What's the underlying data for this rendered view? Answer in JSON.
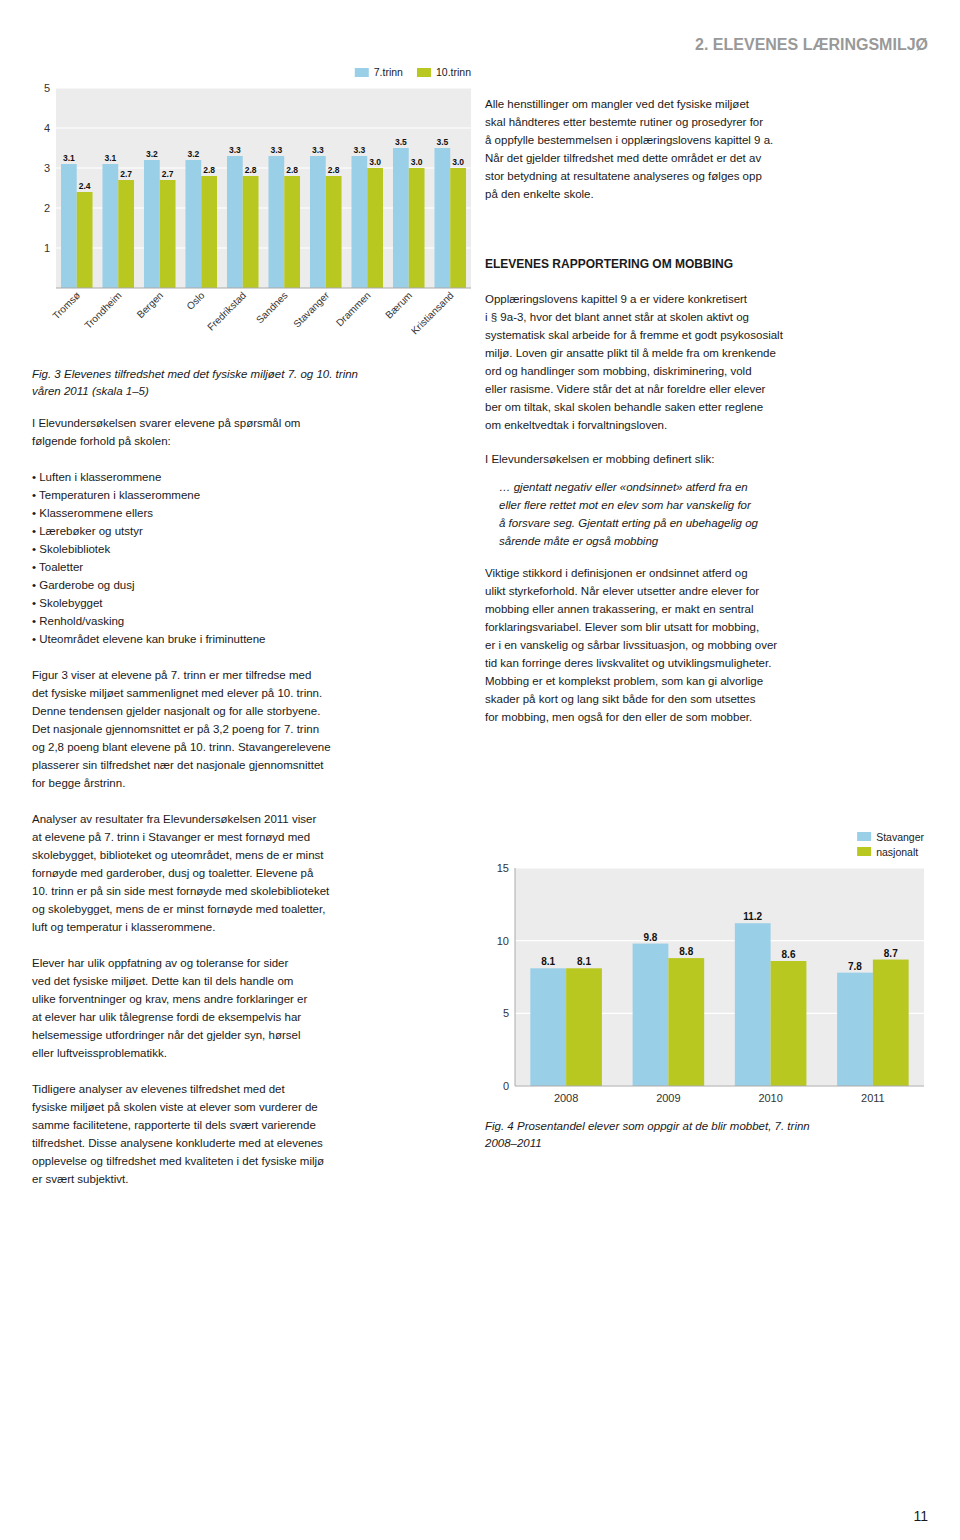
{
  "chart_data": [
    {
      "type": "bar",
      "title": "Fig. 3 Elevenes tilfredshet med det fysiske miljøet 7. og 10. trinn\nvåren 2011 (skala 1–5)",
      "categories": [
        "Tromsø",
        "Trondheim",
        "Bergen",
        "Oslo",
        "Fredrikstad",
        "Sandnes",
        "Stavanger",
        "Drammen",
        "Bærum",
        "Kristiansand"
      ],
      "series": [
        {
          "name": "7.trinn",
          "color": "#9acfe8",
          "values": [
            3.1,
            3.1,
            3.2,
            3.2,
            3.3,
            3.3,
            3.3,
            3.3,
            3.5,
            3.5
          ]
        },
        {
          "name": "10.trinn",
          "color": "#b8c820",
          "values": [
            2.4,
            2.7,
            2.7,
            2.8,
            2.8,
            2.8,
            2.8,
            3.0,
            3.0,
            3.0
          ],
          "value_labels": [
            "2.4",
            "2.7",
            "2.7",
            "2.8",
            "2.8",
            "2.8",
            "2.8",
            "3.0",
            "3.0",
            "3.0"
          ]
        }
      ],
      "ylim": [
        0,
        5
      ],
      "yticks": [
        1,
        2,
        3,
        4,
        5
      ],
      "grid": true,
      "legend": "upper right",
      "data_labels": true
    },
    {
      "type": "bar",
      "title": "Fig. 4 Prosentandel elever som oppgir at de blir mobbet, 7. trinn\n2008–2011",
      "categories": [
        "2008",
        "2009",
        "2010",
        "2011"
      ],
      "series": [
        {
          "name": "Stavanger",
          "color": "#9acfe8",
          "values": [
            8.1,
            9.8,
            11.2,
            7.8
          ]
        },
        {
          "name": "nasjonalt",
          "color": "#b8c820",
          "values": [
            8.1,
            8.8,
            8.6,
            8.7
          ]
        }
      ],
      "ylim": [
        0,
        15
      ],
      "yticks": [
        0,
        5,
        10,
        15
      ],
      "grid": true,
      "legend": "upper right",
      "data_labels": true
    }
  ],
  "page": {
    "title": "2. ELEVENES LÆRINGSMILJØ",
    "page_number": "11",
    "left_column": {
      "intro": "I Elevundersøkelsen svarer elevene på spørsmål om\nfølgende forhold på skolen:",
      "bullets": [
        "• Luften i klasserommene",
        "• Temperaturen i klasserommene",
        "• Klasserommene ellers",
        "• Lærebøker og utstyr",
        "• Skolebibliotek",
        "• Toaletter",
        "• Garderobe og dusj",
        "• Skolebygget",
        "• Renhold/vasking",
        "• Uteområdet elevene kan bruke i friminuttene"
      ],
      "paragraphs": [
        "Figur 3 viser at elevene på 7. trinn er mer tilfredse med\ndet fysiske miljøet sammenlignet med elever på 10. trinn.\nDenne tendensen gjelder nasjonalt og for alle storbyene.\nDet nasjonale gjennomsnittet er på 3,2 poeng for 7. trinn\nog 2,8 poeng blant elevene på 10. trinn. Stavangerelevene\nplasserer sin tilfredshet nær det nasjonale gjennomsnittet\nfor begge årstrinn.",
        "Analyser av resultater fra Elevundersøkelsen 2011 viser\nat elevene på 7. trinn i Stavanger er mest fornøyd med\nskolebygget, biblioteket og uteområdet, mens de er minst\nfornøyde med garderober, dusj og toaletter. Elevene på\n10. trinn er på sin side mest fornøyde med skolebiblioteket\nog skolebygget, mens de er minst fornøyde med toaletter,\nluft og temperatur i klasserommene.",
        "Elever har ulik oppfatning av og toleranse for sider\nved det fysiske miljøet. Dette kan til dels handle om\nulike forventninger og krav, mens andre forklaringer er\nat elever har ulik tålegrense fordi de eksempelvis har\nhelsemessige utfordringer når det gjelder syn, hørsel\neller luftveissproblematikk.",
        "Tidligere analyser av elevenes tilfredshet med det\nfysiske miljøet på skolen viste at elever som vurderer de\nsamme facilitetene, rapporterte til dels svært varierende\ntilfredshet. Disse analysene konkluderte med at elevenes\nopplevelse og tilfredshet med kvaliteten i det fysiske miljø\ner svært subjektivt."
      ]
    },
    "right_column": {
      "para1": "Alle henstillinger om mangler ved det fysiske miljøet\nskal håndteres etter bestemte rutiner og prosedyrer for\nå oppfylle bestemmelsen i opplæringslovens kapittel 9 a.\nNår det gjelder tilfredshet med dette området er det av\nstor betydning at resultatene analyseres og følges opp\npå den enkelte skole.",
      "heading": "ELEVENES RAPPORTERING OM MOBBING",
      "para2": "Opplæringslovens kapittel 9 a er videre konkretisert\ni § 9a-3, hvor det blant annet står at skolen aktivt og\nsystematisk skal arbeide for å fremme et godt psykososialt\nmiljø. Loven gir ansatte plikt til å melde fra om krenkende\nord og handlinger som mobbing, diskriminering, vold\neller rasisme. Videre står det at når foreldre eller elever\nber om tiltak, skal skolen behandle saken etter reglene\nom enkeltvedtak i forvaltningsloven.",
      "definition_intro": "I Elevundersøkelsen er mobbing definert slik:",
      "definition": "… gjentatt negativ eller «ondsinnet» atferd fra en\neller flere rettet mot en elev som har vanskelig for\nå forsvare seg. Gjentatt erting på en ubehagelig og\nsårende måte er også mobbing",
      "para3": "Viktige stikkord i definisjonen er ondsinnet atferd og\nulikt styrkeforhold. Når elever utsetter andre elever for\nmobbing eller annen trakassering, er makt en sentral\nforklaringsvariabel. Elever som blir utsatt for mobbing,\ner i en vanskelig og sårbar livssituasjon, og mobbing over\ntid kan forringe deres livskvalitet og utviklingsmuligheter.\nMobbing er et komplekst problem, som kan gi alvorlige\nskader på kort og lang sikt både for den som utsettes\nfor mobbing, men også for den eller de som mobber."
    }
  }
}
